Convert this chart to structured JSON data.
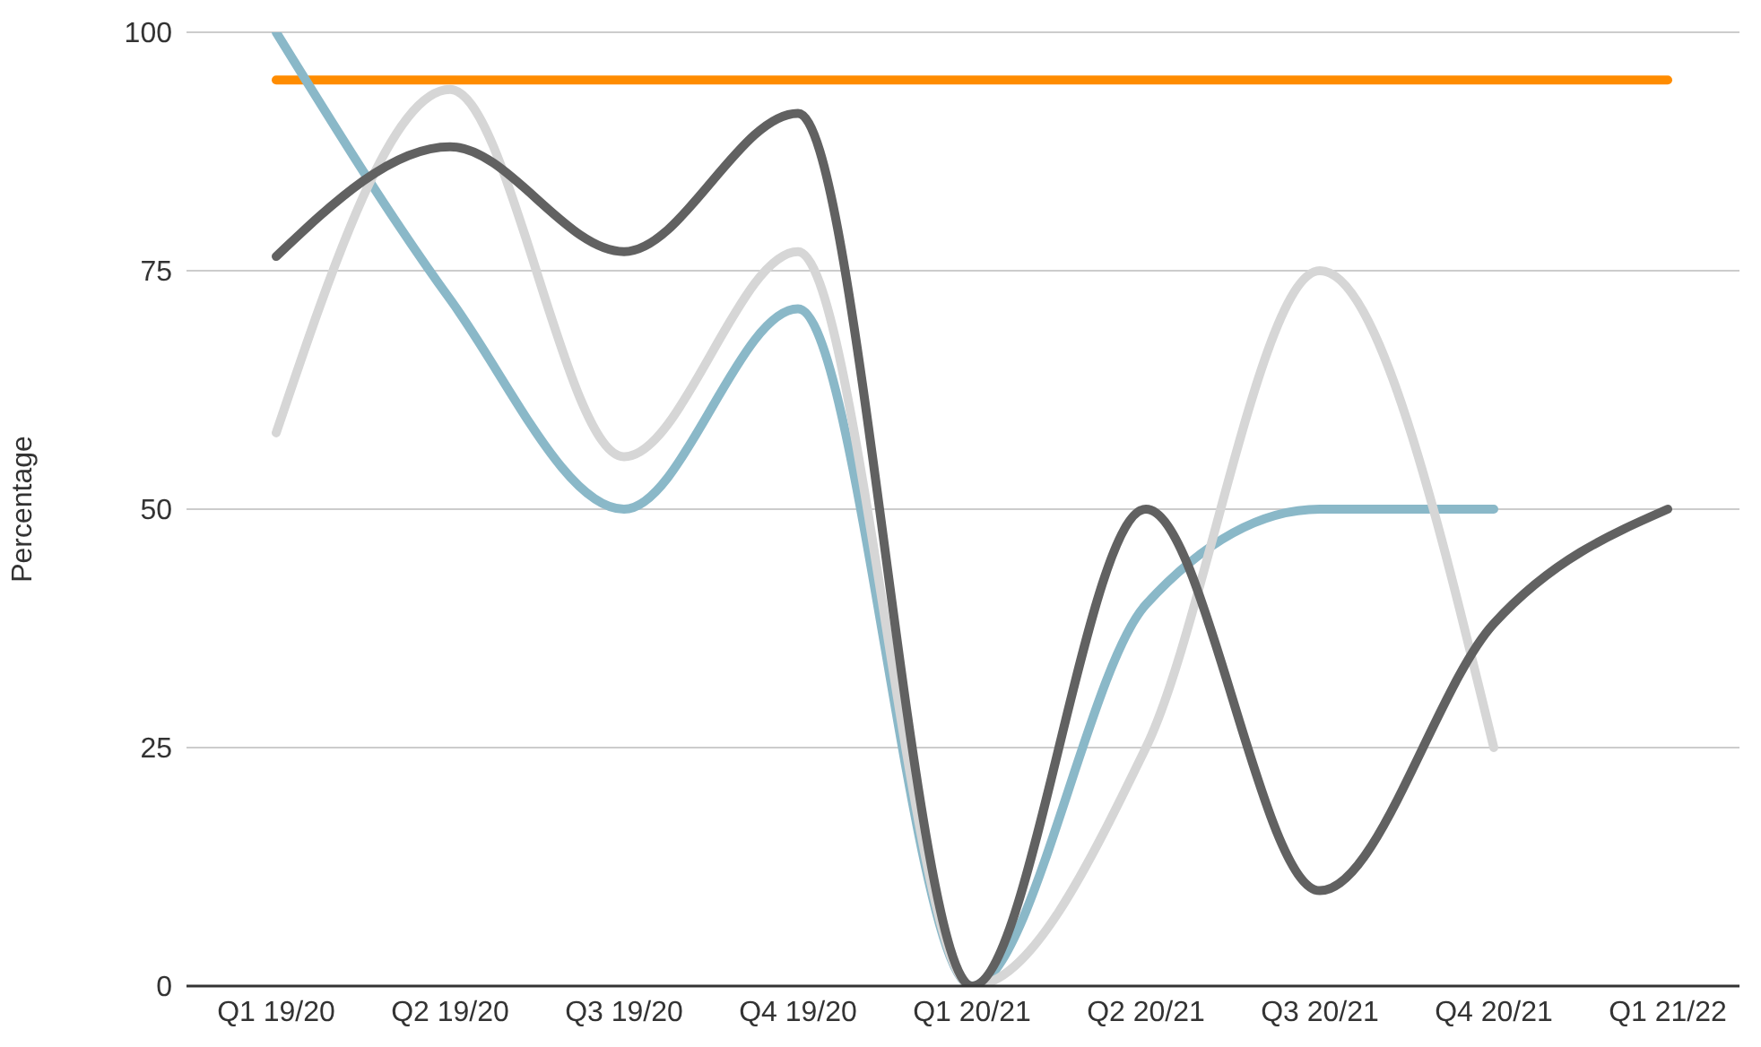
{
  "chart_data": {
    "type": "line",
    "ylabel": "Percentage",
    "categories": [
      "Q1 19/20",
      "Q2 19/20",
      "Q3 19/20",
      "Q4 19/20",
      "Q1 20/21",
      "Q2 20/21",
      "Q3 20/21",
      "Q4 20/21",
      "Q1 21/22"
    ],
    "series": [
      {
        "color": "#ff8c00",
        "values": [
          95,
          95,
          95,
          95,
          95,
          95,
          95,
          95,
          95
        ]
      },
      {
        "color": "#8ab8c8",
        "values": [
          100,
          72,
          50,
          71,
          0,
          40,
          50,
          50,
          null
        ]
      },
      {
        "color": "#d6d6d6",
        "values": [
          58,
          94,
          55.5,
          77,
          0,
          25,
          75,
          25,
          null
        ]
      },
      {
        "color": "#616161",
        "values": [
          76.5,
          88,
          77,
          91.5,
          0,
          50,
          10,
          38,
          50
        ]
      }
    ],
    "ylim": [
      0,
      100
    ],
    "yticks": [
      0,
      25,
      50,
      75,
      100
    ],
    "grid": "y",
    "marker": "none",
    "line_style": "solid"
  }
}
